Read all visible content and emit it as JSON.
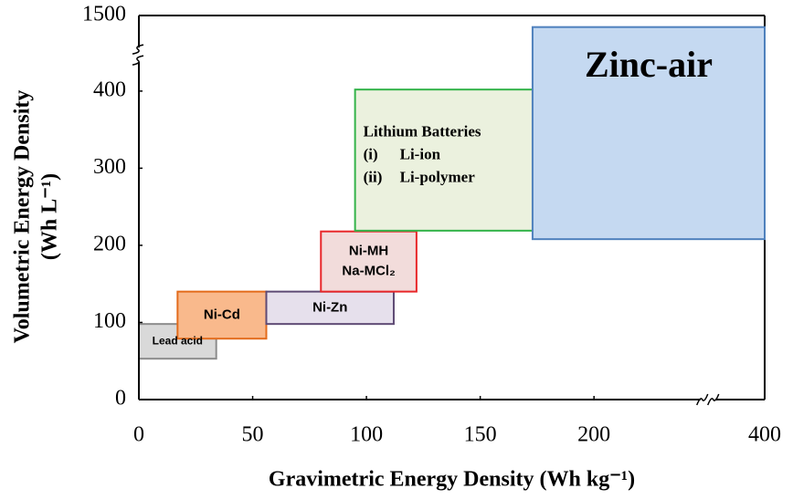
{
  "chart_data": {
    "type": "range-box",
    "xlabel": "Gravimetric Energy Density (Wh kg⁻¹)",
    "ylabel": [
      "Volumetric Energy Density",
      "(Wh L⁻¹)"
    ],
    "xlim": [
      0,
      400
    ],
    "xticks": [
      0,
      50,
      100,
      150,
      200,
      400
    ],
    "xbreak": [
      250,
      375
    ],
    "ylim": [
      0,
      1500
    ],
    "yticks": [
      0,
      100,
      200,
      300,
      400,
      1500
    ],
    "ybreak": [
      447,
      1449
    ],
    "boxes": [
      {
        "label": [
          "Lead acid"
        ],
        "x": [
          0,
          34
        ],
        "y": [
          53,
          98
        ],
        "fill": "#d9d9d9",
        "stroke": "#8c8c8c"
      },
      {
        "label": [
          "Ni-Cd"
        ],
        "x": [
          17,
          56
        ],
        "y": [
          79,
          140
        ],
        "fill": "#f9b98c",
        "stroke": "#e36c1c"
      },
      {
        "label": [
          "Ni-Zn"
        ],
        "x": [
          56,
          112
        ],
        "y": [
          98,
          140
        ],
        "fill": "#e6e0ec",
        "stroke": "#5f4b75"
      },
      {
        "label": [
          "Ni-MH",
          "Na-MCl₂"
        ],
        "x": [
          80,
          122
        ],
        "y": [
          140,
          218
        ],
        "fill": "#f2dcdb",
        "stroke": "#e8272a"
      },
      {
        "label": [
          "Lithium Batteries"
        ],
        "items": [
          [
            "(i)",
            "Li-ion"
          ],
          [
            "(ii)",
            "Li-polymer"
          ]
        ],
        "x": [
          95,
          220
        ],
        "y": [
          219,
          402
        ],
        "fill": "#ebf1de",
        "stroke": "#33b34a"
      },
      {
        "label": [
          "Zinc-air"
        ],
        "x": [
          173,
          400
        ],
        "y": [
          208,
          1485
        ],
        "fill": "#c5d9f1",
        "stroke": "#4f81bd"
      }
    ]
  }
}
